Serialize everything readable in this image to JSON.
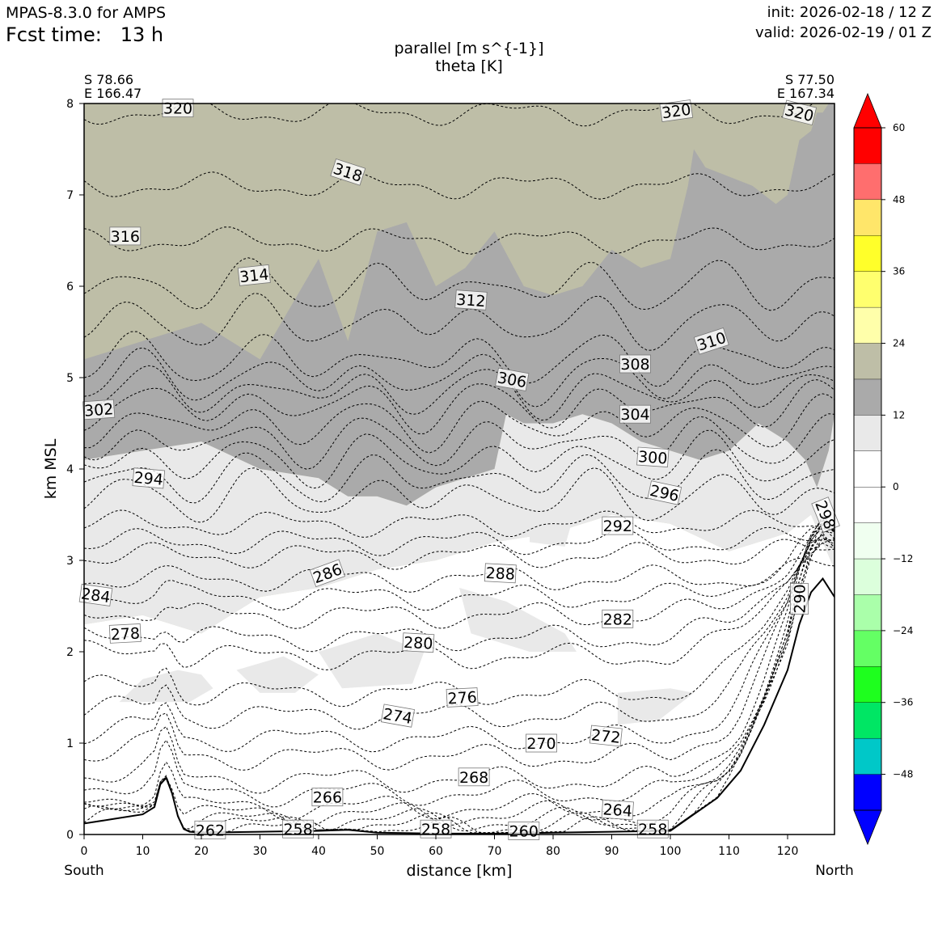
{
  "header": {
    "model": "MPAS-8.3.0 for AMPS",
    "fcst_label": "Fcst time:",
    "fcst_value": "13 h",
    "init": "init: 2026-02-18 / 12 Z",
    "valid": "valid: 2026-02-19 / 01 Z"
  },
  "endpoints": {
    "left_lat": "S 78.66",
    "left_lon": "E 166.47",
    "right_lat": "S 77.50",
    "right_lon": "E 167.34",
    "left_dir": "South",
    "right_dir": "North"
  },
  "chart_data": {
    "type": "contour",
    "title": "parallel [m s^{-1}]",
    "subtitle": "theta [K]",
    "xlabel": "distance [km]",
    "ylabel": "km MSL",
    "xlim": [
      0,
      128
    ],
    "ylim": [
      0,
      8
    ],
    "xticks": [
      0,
      10,
      20,
      30,
      40,
      50,
      60,
      70,
      80,
      90,
      100,
      110,
      120
    ],
    "yticks": [
      0,
      1,
      2,
      3,
      4,
      5,
      6,
      7,
      8
    ],
    "terrain": {
      "x": [
        0,
        5,
        10,
        12,
        13,
        14,
        15,
        16,
        17,
        18,
        20,
        30,
        40,
        45,
        50,
        60,
        70,
        80,
        90,
        100,
        104,
        108,
        112,
        116,
        120,
        122,
        124,
        126,
        128
      ],
      "z": [
        0.12,
        0.17,
        0.22,
        0.3,
        0.55,
        0.62,
        0.45,
        0.2,
        0.06,
        0.03,
        0.02,
        0.03,
        0.04,
        0.05,
        0.02,
        0.01,
        0.01,
        0.02,
        0.03,
        0.04,
        0.22,
        0.4,
        0.7,
        1.2,
        1.8,
        2.3,
        2.65,
        2.8,
        2.6
      ]
    },
    "shading": [
      {
        "range": "12 to 18",
        "color": "#aaaaaa",
        "top": {
          "x": [
            0,
            10,
            20,
            30,
            40,
            45,
            50,
            55,
            60,
            65,
            70,
            75,
            80,
            85,
            90,
            95,
            100,
            103,
            104,
            106,
            110,
            114,
            118,
            120,
            122,
            124,
            125,
            126,
            127,
            128
          ],
          "z": [
            5.2,
            5.4,
            5.6,
            5.2,
            6.3,
            5.4,
            6.6,
            6.7,
            6.0,
            6.2,
            6.6,
            6.0,
            5.9,
            6.0,
            6.4,
            6.2,
            6.3,
            7.1,
            7.5,
            7.3,
            7.2,
            7.1,
            6.9,
            7.0,
            7.6,
            7.7,
            7.9,
            7.9,
            8.0,
            8.0
          ]
        },
        "bottom": {
          "x": [
            0,
            10,
            20,
            30,
            40,
            45,
            50,
            55,
            60,
            65,
            70,
            72,
            75,
            80,
            85,
            90,
            95,
            100,
            105,
            110,
            115,
            120,
            123,
            125,
            127,
            128
          ],
          "z": [
            4.1,
            4.2,
            4.3,
            4.0,
            3.9,
            3.7,
            3.7,
            3.6,
            3.8,
            3.9,
            4.0,
            4.6,
            4.5,
            4.5,
            4.6,
            4.5,
            4.3,
            4.2,
            4.1,
            4.2,
            4.5,
            4.3,
            4.1,
            3.8,
            4.2,
            4.6
          ]
        }
      },
      {
        "range": "6 to 12",
        "color": "#e9e9e9",
        "bottom": {
          "x": [
            0,
            10,
            20,
            30,
            40,
            50,
            60,
            70,
            80,
            90,
            100,
            110,
            120,
            124,
            126,
            128
          ],
          "z": [
            2.3,
            2.4,
            2.2,
            2.6,
            2.7,
            2.9,
            3.0,
            3.2,
            3.3,
            3.5,
            3.4,
            3.1,
            3.3,
            3.5,
            3.2,
            2.9
          ]
        }
      },
      {
        "range": "18 to 24",
        "color": "#bebea7"
      }
    ],
    "theta_contours": {
      "levels": [
        256,
        258,
        260,
        262,
        264,
        266,
        268,
        270,
        272,
        274,
        276,
        278,
        280,
        282,
        284,
        286,
        288,
        290,
        292,
        294,
        296,
        298,
        300,
        302,
        304,
        306,
        308,
        310,
        312,
        314,
        316,
        318,
        320
      ],
      "base_height_km": [
        0.05,
        0.1,
        0.15,
        0.22,
        0.3,
        0.45,
        0.6,
        0.85,
        1.05,
        1.3,
        1.55,
        1.95,
        2.15,
        2.4,
        2.6,
        2.8,
        3.05,
        3.2,
        3.4,
        3.7,
        3.9,
        4.1,
        4.3,
        4.5,
        4.7,
        4.85,
        5.0,
        5.2,
        5.6,
        6.0,
        6.5,
        7.1,
        7.9
      ],
      "labels": [
        {
          "text": "320",
          "x": 16,
          "z": 7.95,
          "rot": 0
        },
        {
          "text": "320",
          "x": 101,
          "z": 7.92,
          "rot": -8
        },
        {
          "text": "320",
          "x": 122,
          "z": 7.9,
          "rot": 14
        },
        {
          "text": "318",
          "x": 45,
          "z": 7.25,
          "rot": 18
        },
        {
          "text": "316",
          "x": 7,
          "z": 6.55,
          "rot": 0
        },
        {
          "text": "314",
          "x": 29,
          "z": 6.12,
          "rot": -6
        },
        {
          "text": "312",
          "x": 66,
          "z": 5.85,
          "rot": 4
        },
        {
          "text": "310",
          "x": 107,
          "z": 5.4,
          "rot": -18
        },
        {
          "text": "308",
          "x": 94,
          "z": 5.15,
          "rot": 0
        },
        {
          "text": "306",
          "x": 73,
          "z": 4.98,
          "rot": 10
        },
        {
          "text": "304",
          "x": 94,
          "z": 4.6,
          "rot": 0
        },
        {
          "text": "302",
          "x": 2.5,
          "z": 4.65,
          "rot": -4
        },
        {
          "text": "300",
          "x": 97,
          "z": 4.13,
          "rot": 4
        },
        {
          "text": "298",
          "x": 126.5,
          "z": 3.5,
          "rot": 68
        },
        {
          "text": "296",
          "x": 99,
          "z": 3.74,
          "rot": 12
        },
        {
          "text": "294",
          "x": 11,
          "z": 3.9,
          "rot": 5
        },
        {
          "text": "292",
          "x": 91,
          "z": 3.38,
          "rot": 0
        },
        {
          "text": "290",
          "x": 122,
          "z": 2.58,
          "rot": -90
        },
        {
          "text": "288",
          "x": 71,
          "z": 2.86,
          "rot": 3
        },
        {
          "text": "286",
          "x": 41.5,
          "z": 2.86,
          "rot": -20
        },
        {
          "text": "284",
          "x": 2,
          "z": 2.62,
          "rot": 8
        },
        {
          "text": "282",
          "x": 91,
          "z": 2.36,
          "rot": 0
        },
        {
          "text": "280",
          "x": 57,
          "z": 2.1,
          "rot": 3
        },
        {
          "text": "278",
          "x": 7,
          "z": 2.2,
          "rot": -3
        },
        {
          "text": "276",
          "x": 64.5,
          "z": 1.5,
          "rot": -3
        },
        {
          "text": "274",
          "x": 53.5,
          "z": 1.3,
          "rot": 10
        },
        {
          "text": "272",
          "x": 89,
          "z": 1.08,
          "rot": 6
        },
        {
          "text": "270",
          "x": 78,
          "z": 1.0,
          "rot": 0
        },
        {
          "text": "268",
          "x": 66.5,
          "z": 0.63,
          "rot": 0
        },
        {
          "text": "266",
          "x": 41.5,
          "z": 0.41,
          "rot": 0
        },
        {
          "text": "264",
          "x": 91,
          "z": 0.27,
          "rot": 4
        },
        {
          "text": "262",
          "x": 21.5,
          "z": 0.05,
          "rot": 0
        },
        {
          "text": "258",
          "x": 36.5,
          "z": 0.06,
          "rot": 0
        },
        {
          "text": "258",
          "x": 60,
          "z": 0.06,
          "rot": 0
        },
        {
          "text": "260",
          "x": 75,
          "z": 0.04,
          "rot": 0
        },
        {
          "text": "258",
          "x": 97,
          "z": 0.06,
          "rot": 0
        }
      ]
    },
    "colorbar": {
      "ticks": [
        60,
        48,
        36,
        24,
        12,
        0,
        -12,
        -24,
        -36,
        -48
      ],
      "tick_labels": [
        "60",
        "48",
        "36",
        "24",
        "12",
        "0",
        "−12",
        "−24",
        "−36",
        "−48"
      ],
      "colors": [
        "#ff0000",
        "#ff6e6e",
        "#ffe66a",
        "#ffff2a",
        "#ffff6e",
        "#ffffaa",
        "#bebea7",
        "#aaaaaa",
        "#e9e9e9",
        "#ffffff",
        "#ffffff",
        "#f0fff0",
        "#dcffdc",
        "#aaffaa",
        "#64ff64",
        "#1eff1e",
        "#00e664",
        "#00c8c8",
        "#0000ff"
      ],
      "over_color": "#ff0000",
      "under_color": "#0000ff"
    }
  }
}
